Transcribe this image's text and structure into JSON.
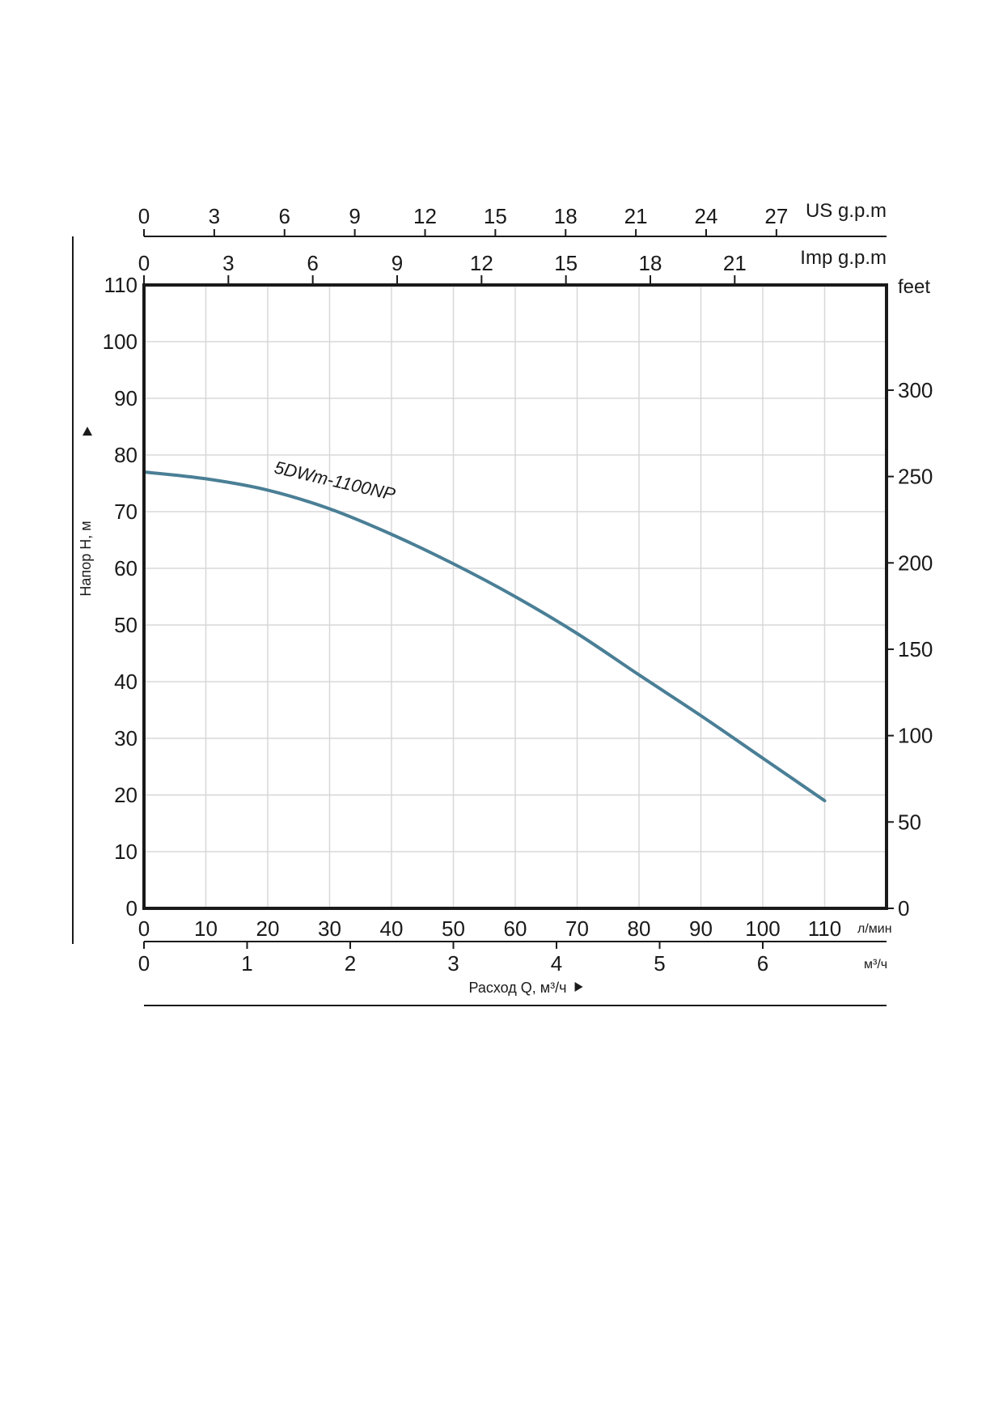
{
  "chart_data": {
    "type": "line",
    "series": [
      {
        "name": "5DWm-1100NP",
        "color": "#4a7f96",
        "x": [
          0,
          10,
          20,
          30,
          40,
          50,
          60,
          70,
          80,
          90,
          100,
          110
        ],
        "y": [
          77,
          75.8,
          73.8,
          70.5,
          66,
          60.8,
          55,
          48.5,
          41.2,
          34,
          26.5,
          19
        ]
      }
    ],
    "xlabel": "Расход Q, м³/ч",
    "ylabel": "Напор Н, м",
    "xlim": [
      0,
      120
    ],
    "ylim": [
      0,
      110
    ],
    "grid": true,
    "x_axis_lpm": {
      "unit": "л/мин",
      "ticks": [
        0,
        10,
        20,
        30,
        40,
        50,
        60,
        70,
        80,
        90,
        100,
        110
      ]
    },
    "x_axis_m3h": {
      "unit": "м³/ч",
      "ticks": [
        0,
        1,
        2,
        3,
        4,
        5,
        6
      ]
    },
    "x_axis_us_gpm": {
      "unit": "US g.p.m",
      "ticks": [
        0,
        3,
        6,
        9,
        12,
        15,
        18,
        21,
        24,
        27
      ]
    },
    "x_axis_imp_gpm": {
      "unit": "Imp g.p.m",
      "ticks": [
        0,
        3,
        6,
        9,
        12,
        15,
        18,
        21
      ]
    },
    "y_axis_m": {
      "ticks": [
        0,
        10,
        20,
        30,
        40,
        50,
        60,
        70,
        80,
        90,
        100,
        110
      ]
    },
    "y_axis_feet": {
      "unit": "feet",
      "ticks": [
        0,
        50,
        100,
        150,
        200,
        250,
        300
      ]
    }
  }
}
